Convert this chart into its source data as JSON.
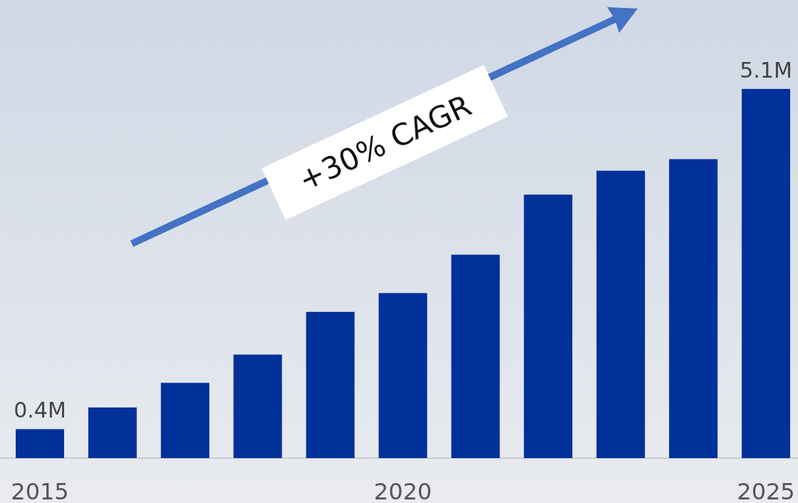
{
  "chart_data": {
    "type": "bar",
    "categories": [
      "2015",
      null,
      null,
      null,
      null,
      "2020",
      null,
      null,
      null,
      null,
      "2025"
    ],
    "values": [
      0.4,
      0.7,
      1.04,
      1.43,
      2.02,
      2.28,
      2.81,
      3.64,
      3.97,
      4.13,
      5.1
    ],
    "value_labels": [
      "0.4M",
      null,
      null,
      null,
      null,
      null,
      null,
      null,
      null,
      null,
      "5.1M"
    ],
    "color": "#00309a",
    "ylim": [
      0,
      6.3
    ],
    "tick_labels": "x",
    "annotations": [
      "+30% CAGR"
    ]
  }
}
